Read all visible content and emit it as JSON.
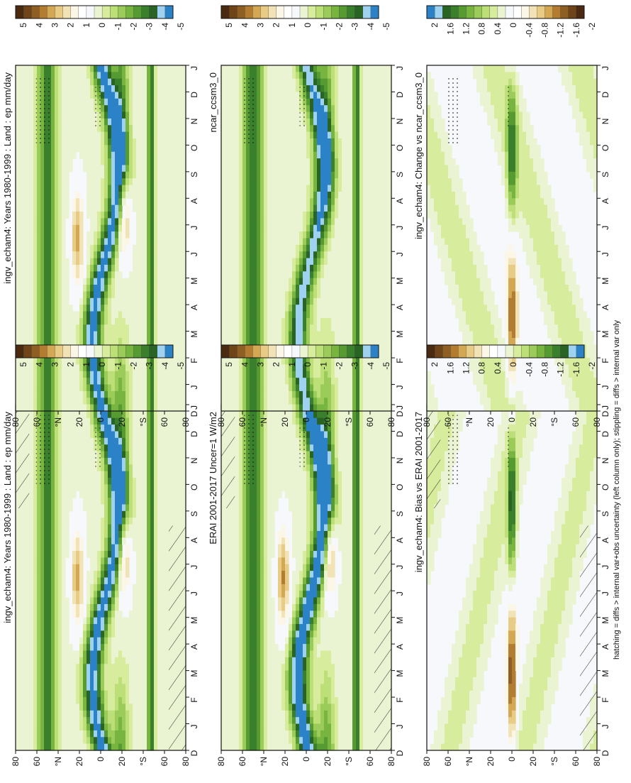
{
  "figure": {
    "footer_text": "hatching = diffs > internal var+obs uncertainty (left column only); stippling = diffs > internal var only"
  },
  "axes": {
    "month_labels": [
      "D",
      "J",
      "F",
      "M",
      "A",
      "M",
      "J",
      "J",
      "A",
      "S",
      "O",
      "N",
      "D",
      "J"
    ],
    "lat_labels": [
      "80",
      "60",
      "°N",
      "20",
      "0",
      "20",
      "°S",
      "60",
      "80"
    ]
  },
  "colorbars": {
    "mean_ticks": [
      "5",
      "4",
      "3",
      "2",
      "1",
      "0",
      "-1",
      "-2",
      "-3",
      "-4",
      "-5"
    ],
    "mean_colors": [
      "#4a2b12",
      "#6e4418",
      "#8f5e22",
      "#b27d30",
      "#d4a853",
      "#e8cb84",
      "#f1e3b6",
      "#fbf6e6",
      "#ffffff",
      "#f6f8fb",
      "#eaf4d3",
      "#d7ec9c",
      "#bcdf78",
      "#9bcc5a",
      "#78b440",
      "#569a32",
      "#3a7f2c",
      "#2a6424",
      "#9fd2f0",
      "#2b82c6"
    ],
    "bias_ticks": [
      "2",
      "1.6",
      "1.2",
      "0.8",
      "0.4",
      "0",
      "-0.4",
      "-0.8",
      "-1.2",
      "-1.6",
      "-2"
    ],
    "bias_colors": [
      "#4a2b12",
      "#6e4418",
      "#8f5e22",
      "#b27d30",
      "#d4a853",
      "#e8cb84",
      "#f1e3b6",
      "#fbf6e6",
      "#ffffff",
      "#f6f8fb",
      "#eaf4d3",
      "#d7ec9c",
      "#bcdf78",
      "#9bcc5a",
      "#78b440",
      "#569a32",
      "#3a7f2c",
      "#2a6424",
      "#9fd2f0",
      "#2b82c6"
    ],
    "change_ticks": [
      "2",
      "1.6",
      "1.2",
      "0.8",
      "0.4",
      "0",
      "-0.4",
      "-0.8",
      "-1.2",
      "-1.6",
      "-2"
    ],
    "change_colors": [
      "#2b82c6",
      "#9fd2f0",
      "#2a6424",
      "#3a7f2c",
      "#569a32",
      "#78b440",
      "#9bcc5a",
      "#bcdf78",
      "#d7ec9c",
      "#eaf4d3",
      "#f6f8fb",
      "#ffffff",
      "#fbf6e6",
      "#f1e3b6",
      "#e8cb84",
      "#d4a853",
      "#b27d30",
      "#8f5e22",
      "#6e4418",
      "#4a2b12"
    ]
  },
  "chart_data": [
    {
      "type": "heatmap",
      "title": "ingv_echam4: Years 1980-1999 : Land : ep mm/day",
      "colorbar": "mean",
      "pattern": "mean",
      "hatched": true
    },
    {
      "type": "heatmap",
      "title": "ingv_echam4: Years 1980-1999 : Land : ep mm/day",
      "colorbar": "mean",
      "pattern": "mean",
      "hatched": false
    },
    {
      "type": "heatmap",
      "title": "ERAI 2001-2017 Uncer=1 W/m2",
      "colorbar": "mean",
      "pattern": "obs",
      "hatched": true
    },
    {
      "type": "heatmap",
      "title": "ncar_ccsm3_0",
      "colorbar": "mean",
      "pattern": "model2",
      "hatched": false
    },
    {
      "type": "heatmap",
      "title": "ingv_echam4: Bias vs ERAI 2001-2017",
      "colorbar": "bias",
      "pattern": "bias",
      "hatched": true
    },
    {
      "type": "heatmap",
      "title": "ingv_echam4: Change vs ncar_ccsm3_0",
      "colorbar": "change",
      "pattern": "change",
      "hatched": false
    }
  ]
}
